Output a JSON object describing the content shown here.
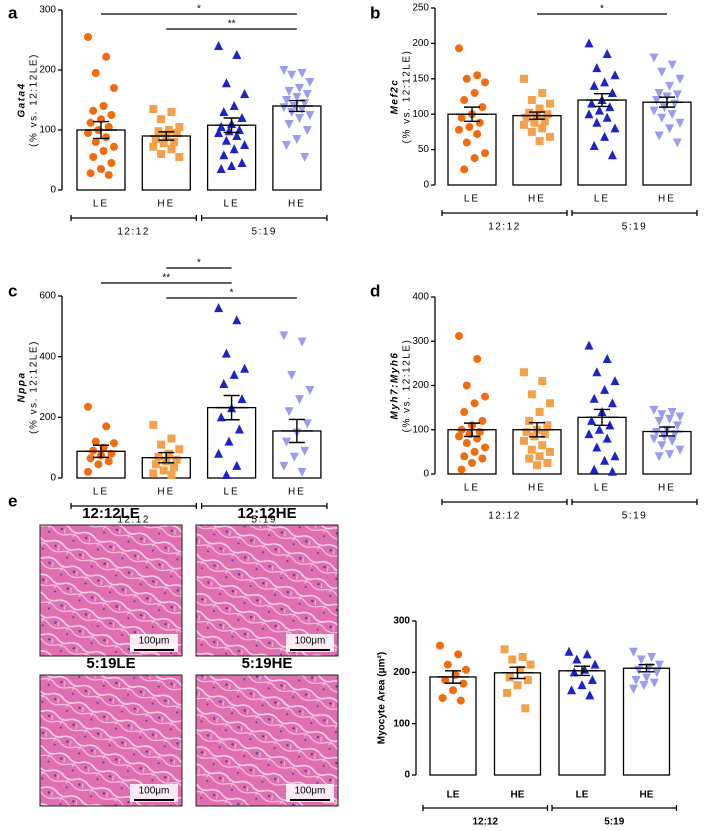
{
  "chart_data": [
    {
      "type": "bar",
      "panel": "a",
      "ylabel": [
        "Gata4",
        "(% vs. 12:12LE)"
      ],
      "categories": [
        "LE",
        "HE",
        "LE",
        "HE"
      ],
      "groups": [
        "12:12",
        "5:19"
      ],
      "values": [
        100,
        90,
        108,
        140
      ],
      "errors": [
        14,
        7,
        12,
        9
      ],
      "points": [
        [
          255,
          222,
          195,
          170,
          140,
          132,
          125,
          118,
          112,
          105,
          100,
          95,
          88,
          80,
          72,
          65,
          55,
          45,
          35,
          28,
          25
        ],
        [
          135,
          130,
          118,
          105,
          100,
          98,
          95,
          90,
          85,
          80,
          78,
          72,
          68,
          60,
          55
        ],
        [
          240,
          225,
          178,
          160,
          140,
          130,
          120,
          110,
          105,
          100,
          98,
          95,
          90,
          82,
          75,
          68,
          58,
          45,
          40,
          35
        ],
        [
          200,
          195,
          192,
          180,
          170,
          165,
          160,
          155,
          150,
          145,
          140,
          138,
          135,
          130,
          125,
          120,
          110,
          100,
          85,
          75,
          55
        ]
      ],
      "colors": [
        "#f26b0f",
        "#f5a04a",
        "#1d23c7",
        "#9b9bef"
      ],
      "markers": [
        "circle",
        "square",
        "triangle",
        "triangle-down"
      ],
      "significance": [
        {
          "from": 0,
          "to": 3,
          "label": "*"
        },
        {
          "from": 1,
          "to": 3,
          "label": "**"
        }
      ],
      "ylim": [
        0,
        300
      ],
      "yticks": [
        0,
        100,
        200,
        300
      ]
    },
    {
      "type": "bar",
      "panel": "b",
      "ylabel": [
        "Mef2c",
        "(% vs. 12:12LE)"
      ],
      "categories": [
        "LE",
        "HE",
        "LE",
        "HE"
      ],
      "groups": [
        "12:12",
        "5:19"
      ],
      "values": [
        100,
        98,
        120,
        117
      ],
      "errors": [
        10,
        5,
        9,
        7
      ],
      "points": [
        [
          193,
          155,
          150,
          145,
          130,
          120,
          110,
          100,
          95,
          88,
          82,
          78,
          72,
          60,
          45,
          38,
          22
        ],
        [
          150,
          130,
          120,
          115,
          108,
          102,
          100,
          98,
          95,
          90,
          88,
          85,
          80,
          75,
          68,
          62
        ],
        [
          200,
          185,
          165,
          155,
          145,
          140,
          130,
          120,
          115,
          110,
          105,
          100,
          95,
          88,
          80,
          68,
          55,
          42
        ],
        [
          180,
          170,
          160,
          150,
          140,
          130,
          128,
          125,
          120,
          115,
          110,
          105,
          100,
          95,
          88,
          80,
          70,
          60
        ]
      ],
      "colors": [
        "#f26b0f",
        "#f5a04a",
        "#1d23c7",
        "#9b9bef"
      ],
      "markers": [
        "circle",
        "square",
        "triangle",
        "triangle-down"
      ],
      "significance": [
        {
          "from": 1,
          "to": 3,
          "label": "*"
        }
      ],
      "ylim": [
        0,
        250
      ],
      "yticks": [
        0,
        50,
        100,
        150,
        200,
        250
      ]
    },
    {
      "type": "bar",
      "panel": "c",
      "ylabel": [
        "Nppa",
        "(% vs. 12:12LE)"
      ],
      "categories": [
        "LE",
        "HE",
        "LE",
        "HE"
      ],
      "groups": [
        "12:12",
        "5:19"
      ],
      "values": [
        88,
        67,
        232,
        155
      ],
      "errors": [
        20,
        17,
        40,
        38
      ],
      "points": [
        [
          235,
          170,
          120,
          115,
          100,
          90,
          80,
          75,
          65,
          55,
          45,
          20
        ],
        [
          175,
          130,
          110,
          95,
          80,
          70,
          60,
          55,
          45,
          35,
          25,
          15,
          10
        ],
        [
          560,
          520,
          410,
          360,
          340,
          310,
          260,
          230,
          200,
          160,
          120,
          80,
          40,
          10
        ],
        [
          470,
          450,
          340,
          290,
          260,
          220,
          180,
          150,
          120,
          90,
          70,
          40,
          20
        ]
      ],
      "colors": [
        "#f26b0f",
        "#f5a04a",
        "#1d23c7",
        "#9b9bef"
      ],
      "markers": [
        "circle",
        "square",
        "triangle",
        "triangle-down"
      ],
      "significance": [
        {
          "from": 1,
          "to": 2,
          "label": "*"
        },
        {
          "from": 0,
          "to": 2,
          "label": "**"
        },
        {
          "from": 1,
          "to": 3,
          "label": "*"
        }
      ],
      "ylim": [
        0,
        600
      ],
      "yticks": [
        0,
        200,
        400,
        600
      ]
    },
    {
      "type": "bar",
      "panel": "d",
      "ylabel": [
        "Myh7:Myh6",
        "(% vs. 12:12LE)"
      ],
      "categories": [
        "LE",
        "HE",
        "LE",
        "HE"
      ],
      "groups": [
        "12:12",
        "5:19"
      ],
      "values": [
        100,
        100,
        128,
        96
      ],
      "errors": [
        15,
        16,
        18,
        10
      ],
      "points": [
        [
          312,
          260,
          200,
          175,
          160,
          140,
          120,
          110,
          100,
          95,
          90,
          85,
          80,
          70,
          60,
          50,
          40,
          35,
          25,
          10
        ],
        [
          230,
          210,
          180,
          160,
          140,
          120,
          110,
          100,
          95,
          90,
          85,
          75,
          65,
          55,
          50,
          40,
          35,
          25,
          20
        ],
        [
          290,
          260,
          230,
          210,
          190,
          170,
          160,
          140,
          120,
          110,
          100,
          90,
          80,
          60,
          40,
          30,
          10,
          5
        ],
        [
          145,
          140,
          135,
          130,
          125,
          120,
          110,
          100,
          95,
          90,
          85,
          80,
          75,
          65,
          55,
          45,
          40
        ]
      ],
      "colors": [
        "#f26b0f",
        "#f5a04a",
        "#1d23c7",
        "#9b9bef"
      ],
      "markers": [
        "circle",
        "square",
        "triangle",
        "triangle-down"
      ],
      "significance": [],
      "ylim": [
        0,
        400
      ],
      "yticks": [
        0,
        100,
        200,
        300,
        400
      ]
    },
    {
      "type": "bar",
      "panel": "e",
      "ylabel": [
        "Myocyte Area (μm²)"
      ],
      "categories": [
        "LE",
        "HE",
        "LE",
        "HE"
      ],
      "groups": [
        "12:12",
        "5:19"
      ],
      "values": [
        191,
        199,
        203,
        208
      ],
      "errors": [
        12,
        11,
        9,
        7
      ],
      "points": [
        [
          252,
          235,
          215,
          205,
          195,
          185,
          178,
          165,
          150,
          145
        ],
        [
          245,
          230,
          225,
          215,
          205,
          190,
          185,
          175,
          160,
          130
        ],
        [
          240,
          235,
          225,
          215,
          205,
          200,
          185,
          175,
          165,
          155
        ],
        [
          240,
          230,
          225,
          215,
          210,
          205,
          200,
          190,
          185,
          180,
          175,
          168
        ]
      ],
      "colors": [
        "#f26b0f",
        "#f5a04a",
        "#1d23c7",
        "#9b9bef"
      ],
      "markers": [
        "circle",
        "square",
        "triangle",
        "triangle-down"
      ],
      "significance": [],
      "ylim": [
        0,
        300
      ],
      "yticks": [
        0,
        100,
        200,
        300
      ]
    }
  ],
  "micrographs": [
    {
      "label": "12:12LE",
      "scale": "100μm"
    },
    {
      "label": "12:12HE",
      "scale": "100μm"
    },
    {
      "label": "5:19LE",
      "scale": "100μm"
    },
    {
      "label": "5:19HE",
      "scale": "100μm"
    }
  ]
}
